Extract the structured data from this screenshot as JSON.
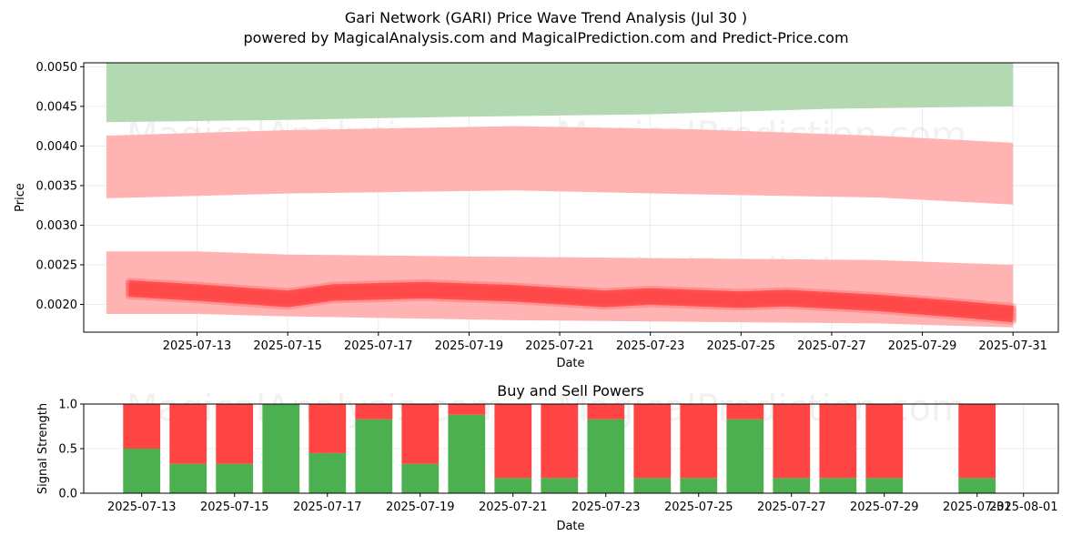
{
  "title_line1": "Gari Network (GARI) Price Wave Trend Analysis (Jul 30 )",
  "title_line2": "powered by MagicalAnalysis.com and MagicalPrediction.com and Predict-Price.com",
  "watermarks": [
    "MagicalAnalysis.com",
    "MagicalPrediction.com"
  ],
  "colors": {
    "buy": "#4caf50",
    "sell": "#ff4444",
    "upper_band": "#b3d9b3",
    "band": "#ffb3b3",
    "wave": "#ff3333"
  },
  "chart_data": [
    {
      "type": "area",
      "xlabel": "Date",
      "ylabel": "Price",
      "xlim": [
        "2025-07-10T12:00",
        "2025-08-01T00:00"
      ],
      "ylim": [
        0.00165,
        0.00505
      ],
      "y_ticks": [
        "0.0020",
        "0.0025",
        "0.0030",
        "0.0035",
        "0.0040",
        "0.0045",
        "0.0050"
      ],
      "x_ticks": [
        "2025-07-13",
        "2025-07-15",
        "2025-07-17",
        "2025-07-19",
        "2025-07-21",
        "2025-07-23",
        "2025-07-25",
        "2025-07-27",
        "2025-07-29",
        "2025-07-31"
      ],
      "grid": true,
      "bands": [
        {
          "color": "green",
          "x": [
            "2025-07-11",
            "2025-07-15",
            "2025-07-19",
            "2025-07-23",
            "2025-07-27",
            "2025-07-31"
          ],
          "upper": [
            0.00505,
            0.00505,
            0.00505,
            0.00505,
            0.00505,
            0.00505
          ],
          "lower": [
            0.0043,
            0.00433,
            0.00437,
            0.0044,
            0.00447,
            0.0045
          ]
        },
        {
          "color": "red",
          "x": [
            "2025-07-11",
            "2025-07-15",
            "2025-07-20",
            "2025-07-24",
            "2025-07-28",
            "2025-07-31"
          ],
          "upper": [
            0.00413,
            0.0042,
            0.00425,
            0.00421,
            0.00413,
            0.00404
          ],
          "lower": [
            0.00334,
            0.0034,
            0.00344,
            0.00339,
            0.00335,
            0.00326
          ]
        },
        {
          "color": "red",
          "x": [
            "2025-07-11",
            "2025-07-13",
            "2025-07-15",
            "2025-07-20",
            "2025-07-24",
            "2025-07-28",
            "2025-07-31"
          ],
          "upper": [
            0.00267,
            0.00267,
            0.00263,
            0.0026,
            0.00258,
            0.00256,
            0.0025
          ],
          "lower": [
            0.00188,
            0.00188,
            0.00185,
            0.0018,
            0.00178,
            0.00176,
            0.00171
          ]
        }
      ],
      "wave": {
        "x": [
          "2025-07-11T12:00",
          "2025-07-13",
          "2025-07-15",
          "2025-07-16",
          "2025-07-18",
          "2025-07-20",
          "2025-07-22",
          "2025-07-23",
          "2025-07-25",
          "2025-07-26",
          "2025-07-28",
          "2025-07-30",
          "2025-07-31"
        ],
        "y": [
          0.0022,
          0.00215,
          0.00207,
          0.00215,
          0.00218,
          0.00214,
          0.00207,
          0.0021,
          0.00206,
          0.00208,
          0.00202,
          0.00193,
          0.00188
        ]
      }
    },
    {
      "type": "bar",
      "title": "Buy and Sell Powers",
      "xlabel": "Date",
      "ylabel": "Signal Strength",
      "ylim": [
        0,
        1.0
      ],
      "y_ticks": [
        "0.0",
        "0.5",
        "1.0"
      ],
      "x_ticks": [
        "2025-07-13",
        "2025-07-15",
        "2025-07-17",
        "2025-07-19",
        "2025-07-21",
        "2025-07-23",
        "2025-07-25",
        "2025-07-27",
        "2025-07-29",
        "2025-07-31",
        "2025-08-01"
      ],
      "grid": true,
      "categories": [
        "2025-07-13",
        "2025-07-14",
        "2025-07-15",
        "2025-07-16",
        "2025-07-17",
        "2025-07-18",
        "2025-07-19",
        "2025-07-20",
        "2025-07-21",
        "2025-07-22",
        "2025-07-23",
        "2025-07-24",
        "2025-07-25",
        "2025-07-26",
        "2025-07-27",
        "2025-07-28",
        "2025-07-29",
        "2025-07-31"
      ],
      "series": [
        {
          "name": "Buy",
          "values": [
            0.5,
            0.33,
            0.33,
            1.0,
            0.45,
            0.83,
            0.33,
            0.88,
            0.17,
            0.17,
            0.83,
            0.17,
            0.17,
            0.83,
            0.17,
            0.17,
            0.17,
            0.17
          ]
        },
        {
          "name": "Sell",
          "values": [
            0.5,
            0.67,
            0.67,
            0.0,
            0.55,
            0.17,
            0.67,
            0.12,
            0.83,
            0.83,
            0.17,
            0.83,
            0.83,
            0.17,
            0.83,
            0.83,
            0.83,
            0.83
          ]
        }
      ]
    }
  ]
}
